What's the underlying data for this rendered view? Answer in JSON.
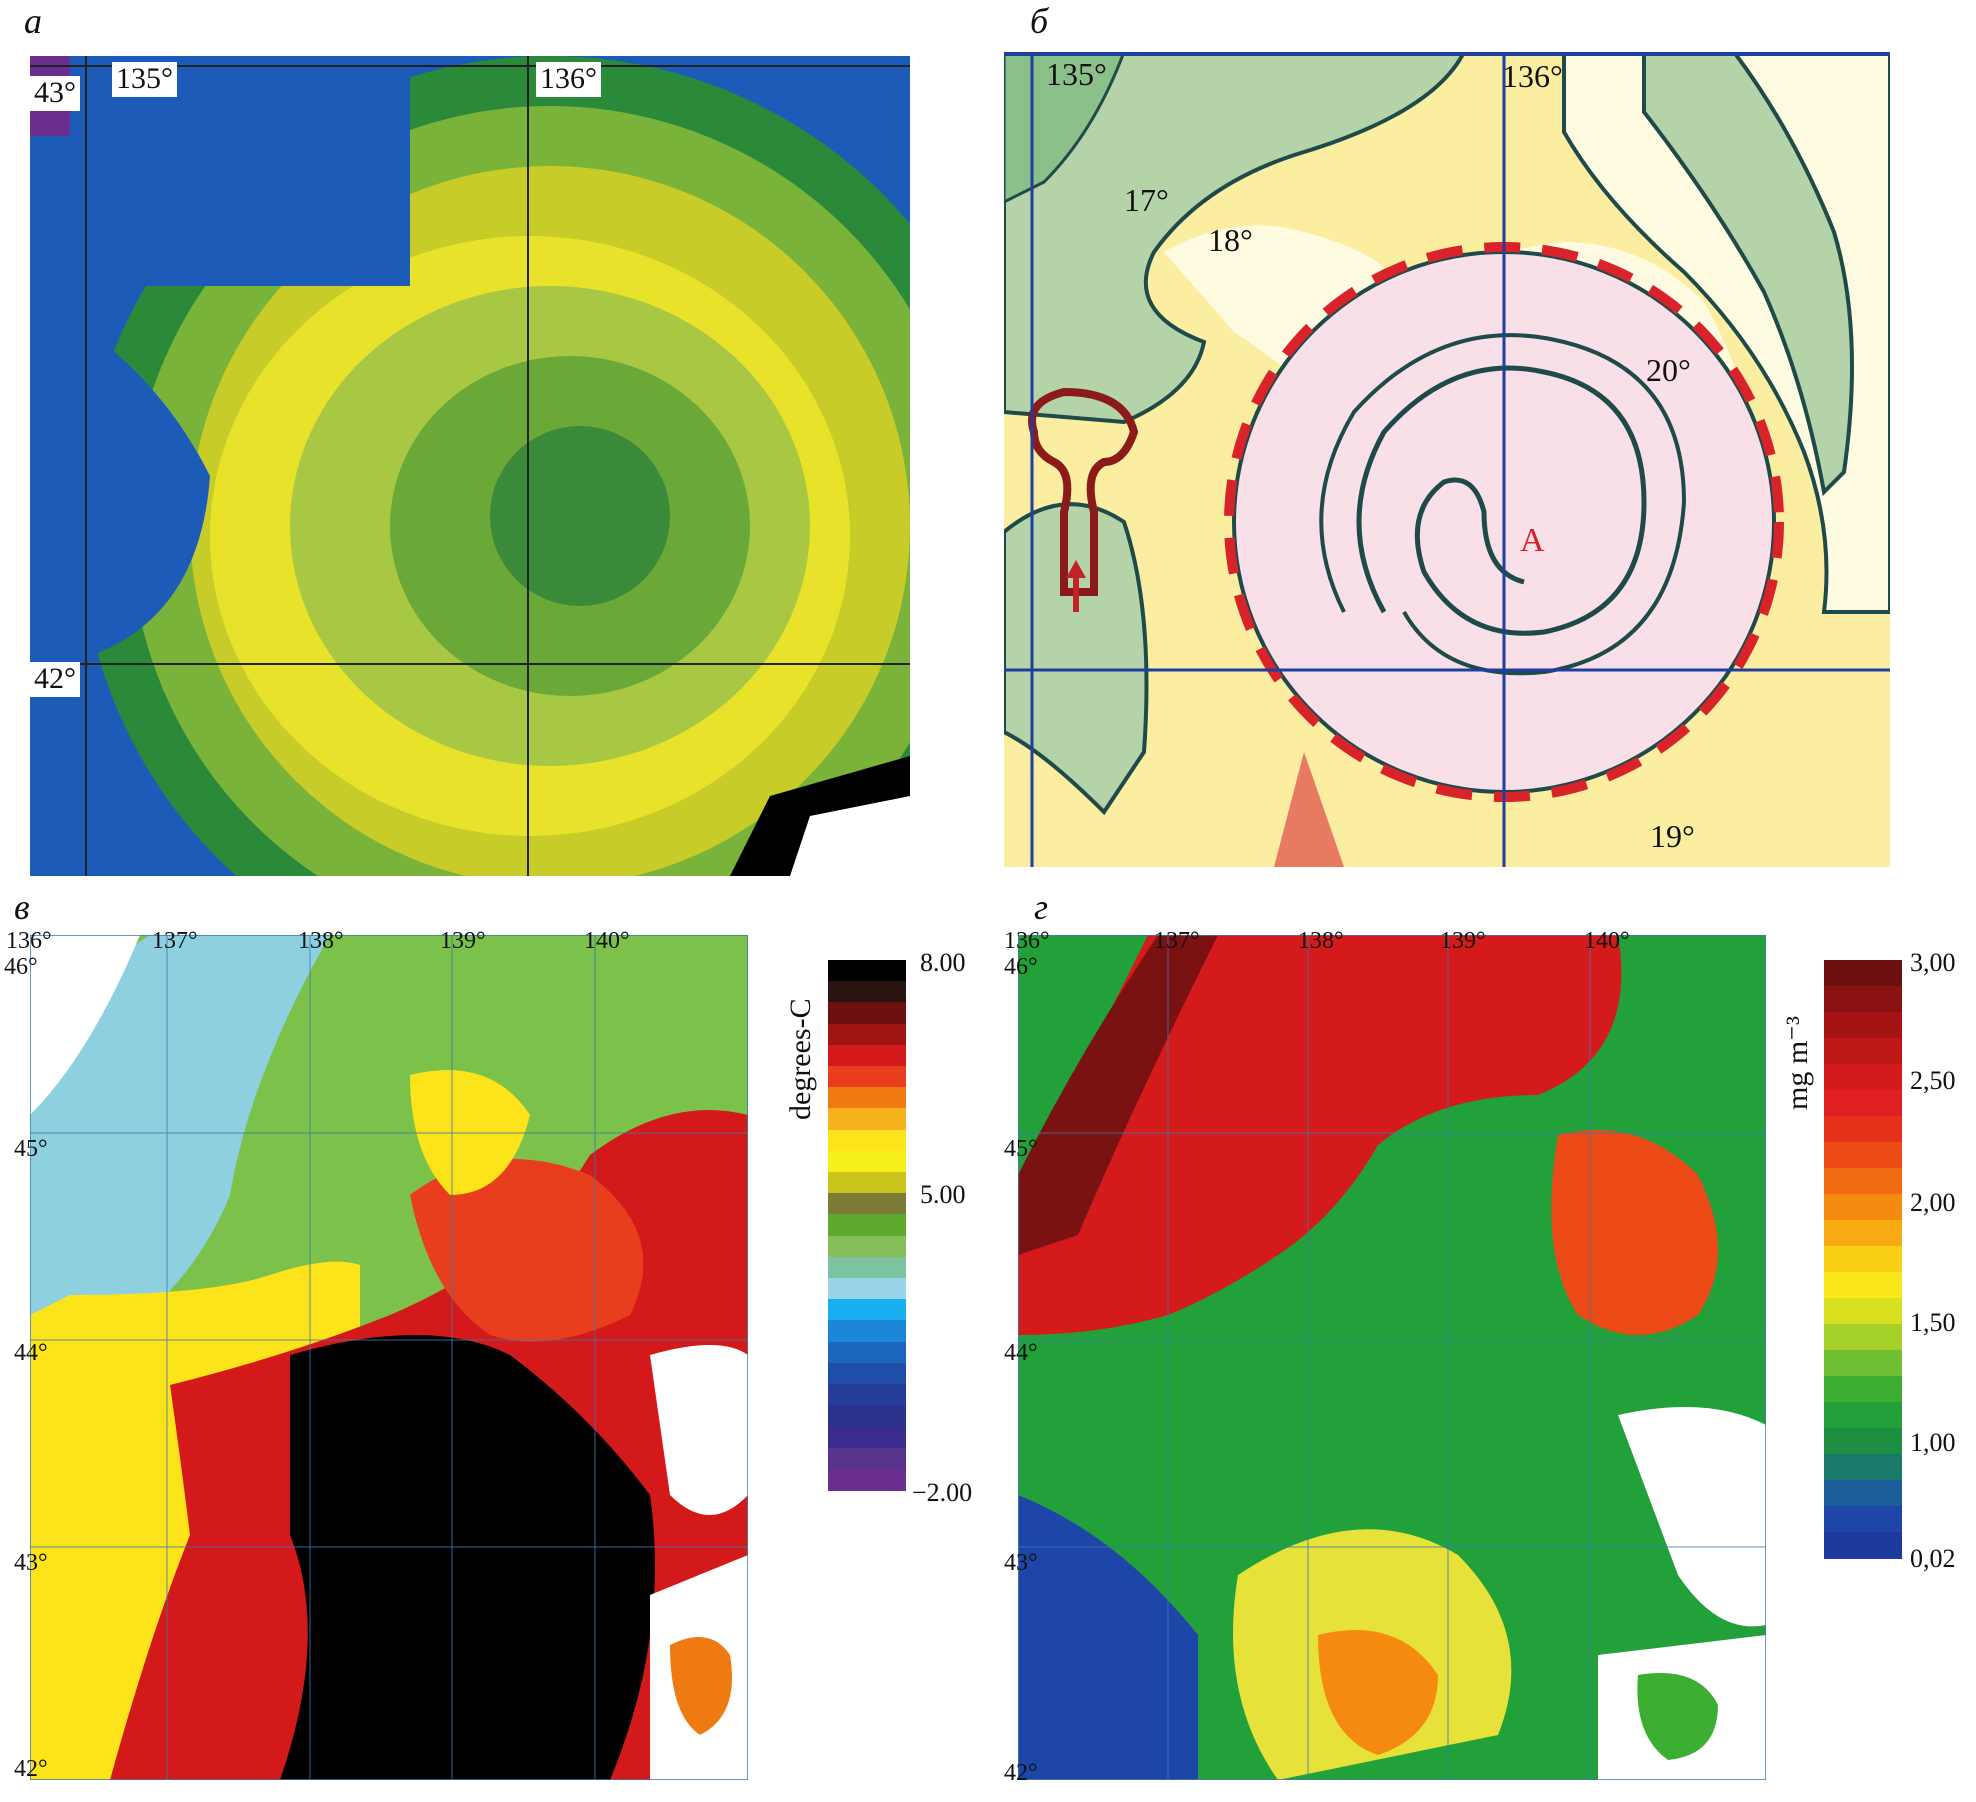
{
  "panels": {
    "a": {
      "label": "а",
      "lon_ticks": [
        "135°",
        "136°"
      ],
      "lat_ticks": [
        "43°",
        "42°"
      ]
    },
    "b": {
      "label": "б",
      "lon_ticks": [
        "135°",
        "136°"
      ],
      "isotherm_labels": [
        "17°",
        "18°",
        "20°",
        "19°"
      ],
      "eddy_label": "A"
    },
    "c": {
      "label": "в",
      "lon_ticks": [
        "136°",
        "137°",
        "138°",
        "139°",
        "140°"
      ],
      "lat_ticks": [
        "46°",
        "45°",
        "44°",
        "43°",
        "42°"
      ],
      "colorbar": {
        "title": "degrees-C",
        "ticks": [
          "8.00",
          "5.00",
          "−2.00"
        ],
        "range": [
          -2.0,
          8.0
        ],
        "colors": [
          "#000000",
          "#2a1412",
          "#6e1010",
          "#a01414",
          "#d4191a",
          "#e83e1e",
          "#f07a12",
          "#f8b21e",
          "#fde31a",
          "#f5f01c",
          "#c9c41a",
          "#7d7c36",
          "#5eaa2e",
          "#86bf5a",
          "#7cc3a0",
          "#9ad4e8",
          "#18aef0",
          "#1a86d8",
          "#1c66c0",
          "#1f4ea8",
          "#243e98",
          "#2a3290",
          "#3a2c8c",
          "#58338c",
          "#6a2f8e"
        ]
      }
    },
    "d": {
      "label": "г",
      "lon_ticks": [
        "136°",
        "137°",
        "138°",
        "139°",
        "140°"
      ],
      "lat_ticks": [
        "46°",
        "45°",
        "44°",
        "43°",
        "42°"
      ],
      "colorbar": {
        "title": "mg m⁻³",
        "ticks": [
          "3,00",
          "2,50",
          "2,00",
          "1,50",
          "1,00",
          "0,02"
        ],
        "colors": [
          "#6e0f0f",
          "#8a1212",
          "#a51414",
          "#bf1616",
          "#d41a1a",
          "#e02020",
          "#e6301a",
          "#ec4a16",
          "#f06a12",
          "#f48a10",
          "#f8aa12",
          "#fbd014",
          "#fbe81a",
          "#d8e020",
          "#a6d02a",
          "#6ec032",
          "#3cae32",
          "#22a03a",
          "#1c9040",
          "#1a7a6a",
          "#1c5e9a",
          "#1e46a8",
          "#1e3a9c"
        ]
      }
    }
  }
}
